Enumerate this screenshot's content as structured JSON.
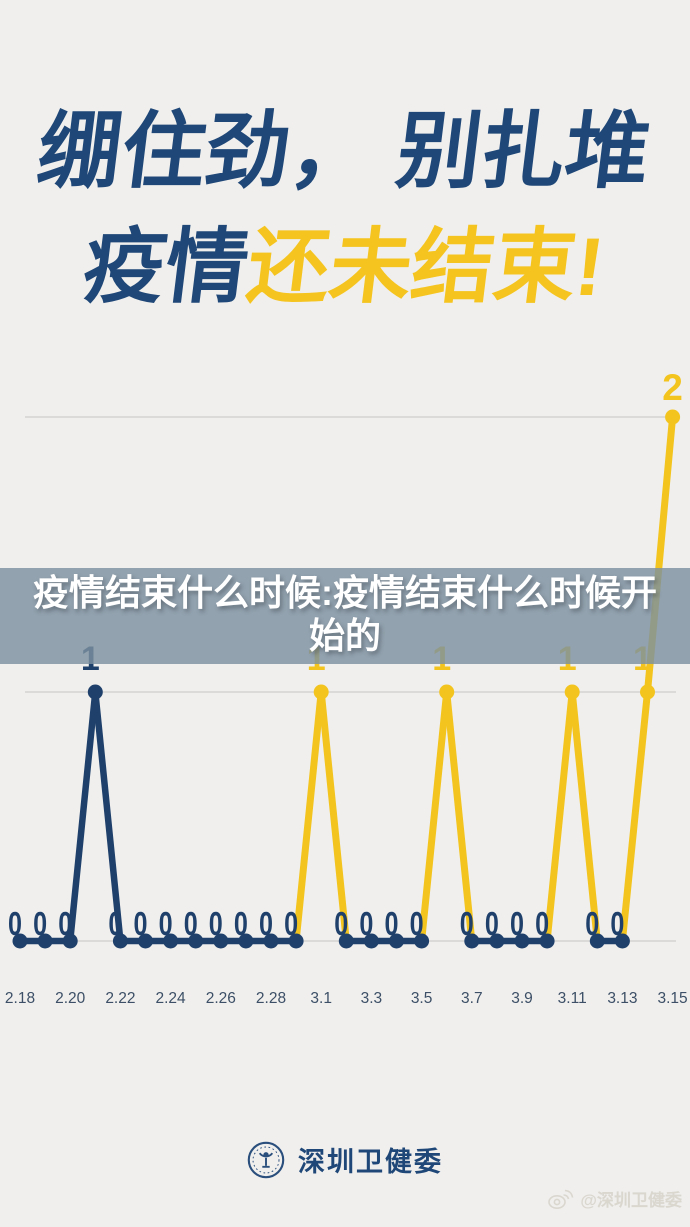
{
  "poster": {
    "title": {
      "line1": "绷住劲， 别扎堆",
      "line2_prefix": "疫情",
      "line2_highlight": "还未结束!"
    },
    "overlay_caption": "疫情结束什么时候:疫情结束什么时候开始的",
    "footer": {
      "org_name": "深圳卫健委"
    },
    "watermark": {
      "handle": "@深圳卫健委",
      "icon": "weibo-icon"
    }
  },
  "colors": {
    "background": "#f0efed",
    "title_navy": "#1f4777",
    "highlight_yellow": "#f5c41f",
    "chart_navy": "#1f406b",
    "chart_yellow": "#f3c41d",
    "band_overlay": "#7c91a0",
    "tick_label": "#3c4f66",
    "gridline": "#c7c6c4"
  },
  "chart_data": {
    "type": "line",
    "title": "",
    "xlabel": "",
    "ylabel": "",
    "ylim": [
      0,
      2
    ],
    "grid": true,
    "legend": "none",
    "show_value_labels": true,
    "categories": [
      "2.18",
      "2.19",
      "2.20",
      "2.21",
      "2.22",
      "2.23",
      "2.24",
      "2.25",
      "2.26",
      "2.27",
      "2.28",
      "2.29",
      "3.1",
      "3.2",
      "3.3",
      "3.4",
      "3.5",
      "3.6",
      "3.7",
      "3.8",
      "3.9",
      "3.10",
      "3.11",
      "3.12",
      "3.13",
      "3.14",
      "3.15"
    ],
    "values": [
      0,
      0,
      0,
      1,
      0,
      0,
      0,
      0,
      0,
      0,
      0,
      0,
      1,
      0,
      0,
      0,
      0,
      1,
      0,
      0,
      0,
      0,
      1,
      0,
      0,
      1,
      2
    ],
    "point_colors": [
      "navy",
      "navy",
      "navy",
      "navy",
      "navy",
      "navy",
      "navy",
      "navy",
      "navy",
      "navy",
      "navy",
      "navy",
      "yellow",
      "navy",
      "navy",
      "navy",
      "navy",
      "yellow",
      "navy",
      "navy",
      "navy",
      "navy",
      "yellow",
      "navy",
      "navy",
      "yellow",
      "yellow"
    ],
    "x_tick_labels": [
      "2.18",
      "2.20",
      "2.22",
      "2.24",
      "2.26",
      "2.28",
      "3.1",
      "3.3",
      "3.5",
      "3.7",
      "3.9",
      "3.11",
      "3.13",
      "3.15"
    ]
  }
}
